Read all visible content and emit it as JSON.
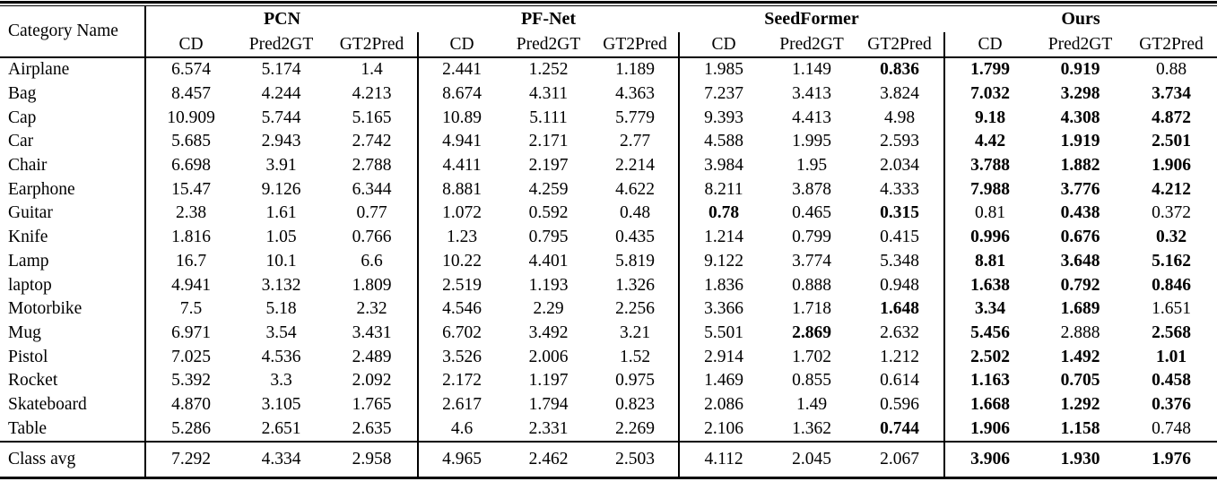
{
  "table": {
    "corner_header": "Category Name",
    "group_headers": [
      "PCN",
      "PF-Net",
      "SeedFormer",
      "Ours"
    ],
    "metric_headers": [
      "CD",
      "Pred2GT",
      "GT2Pred"
    ],
    "rows": [
      {
        "category": "Airplane",
        "values": [
          "6.574",
          "5.174",
          "1.4",
          "2.441",
          "1.252",
          "1.189",
          "1.985",
          "1.149",
          "0.836",
          "1.799",
          "0.919",
          "0.88"
        ],
        "bold": [
          false,
          false,
          false,
          false,
          false,
          false,
          false,
          false,
          true,
          true,
          true,
          false
        ]
      },
      {
        "category": "Bag",
        "values": [
          "8.457",
          "4.244",
          "4.213",
          "8.674",
          "4.311",
          "4.363",
          "7.237",
          "3.413",
          "3.824",
          "7.032",
          "3.298",
          "3.734"
        ],
        "bold": [
          false,
          false,
          false,
          false,
          false,
          false,
          false,
          false,
          false,
          true,
          true,
          true
        ]
      },
      {
        "category": "Cap",
        "values": [
          "10.909",
          "5.744",
          "5.165",
          "10.89",
          "5.111",
          "5.779",
          "9.393",
          "4.413",
          "4.98",
          "9.18",
          "4.308",
          "4.872"
        ],
        "bold": [
          false,
          false,
          false,
          false,
          false,
          false,
          false,
          false,
          false,
          true,
          true,
          true
        ]
      },
      {
        "category": "Car",
        "values": [
          "5.685",
          "2.943",
          "2.742",
          "4.941",
          "2.171",
          "2.77",
          "4.588",
          "1.995",
          "2.593",
          "4.42",
          "1.919",
          "2.501"
        ],
        "bold": [
          false,
          false,
          false,
          false,
          false,
          false,
          false,
          false,
          false,
          true,
          true,
          true
        ]
      },
      {
        "category": "Chair",
        "values": [
          "6.698",
          "3.91",
          "2.788",
          "4.411",
          "2.197",
          "2.214",
          "3.984",
          "1.95",
          "2.034",
          "3.788",
          "1.882",
          "1.906"
        ],
        "bold": [
          false,
          false,
          false,
          false,
          false,
          false,
          false,
          false,
          false,
          true,
          true,
          true
        ]
      },
      {
        "category": "Earphone",
        "values": [
          "15.47",
          "9.126",
          "6.344",
          "8.881",
          "4.259",
          "4.622",
          "8.211",
          "3.878",
          "4.333",
          "7.988",
          "3.776",
          "4.212"
        ],
        "bold": [
          false,
          false,
          false,
          false,
          false,
          false,
          false,
          false,
          false,
          true,
          true,
          true
        ]
      },
      {
        "category": "Guitar",
        "values": [
          "2.38",
          "1.61",
          "0.77",
          "1.072",
          "0.592",
          "0.48",
          "0.78",
          "0.465",
          "0.315",
          "0.81",
          "0.438",
          "0.372"
        ],
        "bold": [
          false,
          false,
          false,
          false,
          false,
          false,
          true,
          false,
          true,
          false,
          true,
          false
        ]
      },
      {
        "category": "Knife",
        "values": [
          "1.816",
          "1.05",
          "0.766",
          "1.23",
          "0.795",
          "0.435",
          "1.214",
          "0.799",
          "0.415",
          "0.996",
          "0.676",
          "0.32"
        ],
        "bold": [
          false,
          false,
          false,
          false,
          false,
          false,
          false,
          false,
          false,
          true,
          true,
          true
        ]
      },
      {
        "category": "Lamp",
        "values": [
          "16.7",
          "10.1",
          "6.6",
          "10.22",
          "4.401",
          "5.819",
          "9.122",
          "3.774",
          "5.348",
          "8.81",
          "3.648",
          "5.162"
        ],
        "bold": [
          false,
          false,
          false,
          false,
          false,
          false,
          false,
          false,
          false,
          true,
          true,
          true
        ]
      },
      {
        "category": "laptop",
        "values": [
          "4.941",
          "3.132",
          "1.809",
          "2.519",
          "1.193",
          "1.326",
          "1.836",
          "0.888",
          "0.948",
          "1.638",
          "0.792",
          "0.846"
        ],
        "bold": [
          false,
          false,
          false,
          false,
          false,
          false,
          false,
          false,
          false,
          true,
          true,
          true
        ]
      },
      {
        "category": "Motorbike",
        "values": [
          "7.5",
          "5.18",
          "2.32",
          "4.546",
          "2.29",
          "2.256",
          "3.366",
          "1.718",
          "1.648",
          "3.34",
          "1.689",
          "1.651"
        ],
        "bold": [
          false,
          false,
          false,
          false,
          false,
          false,
          false,
          false,
          true,
          true,
          true,
          false
        ]
      },
      {
        "category": "Mug",
        "values": [
          "6.971",
          "3.54",
          "3.431",
          "6.702",
          "3.492",
          "3.21",
          "5.501",
          "2.869",
          "2.632",
          "5.456",
          "2.888",
          "2.568"
        ],
        "bold": [
          false,
          false,
          false,
          false,
          false,
          false,
          false,
          true,
          false,
          true,
          false,
          true
        ]
      },
      {
        "category": "Pistol",
        "values": [
          "7.025",
          "4.536",
          "2.489",
          "3.526",
          "2.006",
          "1.52",
          "2.914",
          "1.702",
          "1.212",
          "2.502",
          "1.492",
          "1.01"
        ],
        "bold": [
          false,
          false,
          false,
          false,
          false,
          false,
          false,
          false,
          false,
          true,
          true,
          true
        ]
      },
      {
        "category": "Rocket",
        "values": [
          "5.392",
          "3.3",
          "2.092",
          "2.172",
          "1.197",
          "0.975",
          "1.469",
          "0.855",
          "0.614",
          "1.163",
          "0.705",
          "0.458"
        ],
        "bold": [
          false,
          false,
          false,
          false,
          false,
          false,
          false,
          false,
          false,
          true,
          true,
          true
        ]
      },
      {
        "category": "Skateboard",
        "values": [
          "4.870",
          "3.105",
          "1.765",
          "2.617",
          "1.794",
          "0.823",
          "2.086",
          "1.49",
          "0.596",
          "1.668",
          "1.292",
          "0.376"
        ],
        "bold": [
          false,
          false,
          false,
          false,
          false,
          false,
          false,
          false,
          false,
          true,
          true,
          true
        ]
      },
      {
        "category": "Table",
        "values": [
          "5.286",
          "2.651",
          "2.635",
          "4.6",
          "2.331",
          "2.269",
          "2.106",
          "1.362",
          "0.744",
          "1.906",
          "1.158",
          "0.748"
        ],
        "bold": [
          false,
          false,
          false,
          false,
          false,
          false,
          false,
          false,
          true,
          true,
          true,
          false
        ]
      }
    ],
    "footer": {
      "category": "Class avg",
      "values": [
        "7.292",
        "4.334",
        "2.958",
        "4.965",
        "2.462",
        "2.503",
        "4.112",
        "2.045",
        "2.067",
        "3.906",
        "1.930",
        "1.976"
      ],
      "bold": [
        false,
        false,
        false,
        false,
        false,
        false,
        false,
        false,
        false,
        true,
        true,
        true
      ]
    }
  }
}
